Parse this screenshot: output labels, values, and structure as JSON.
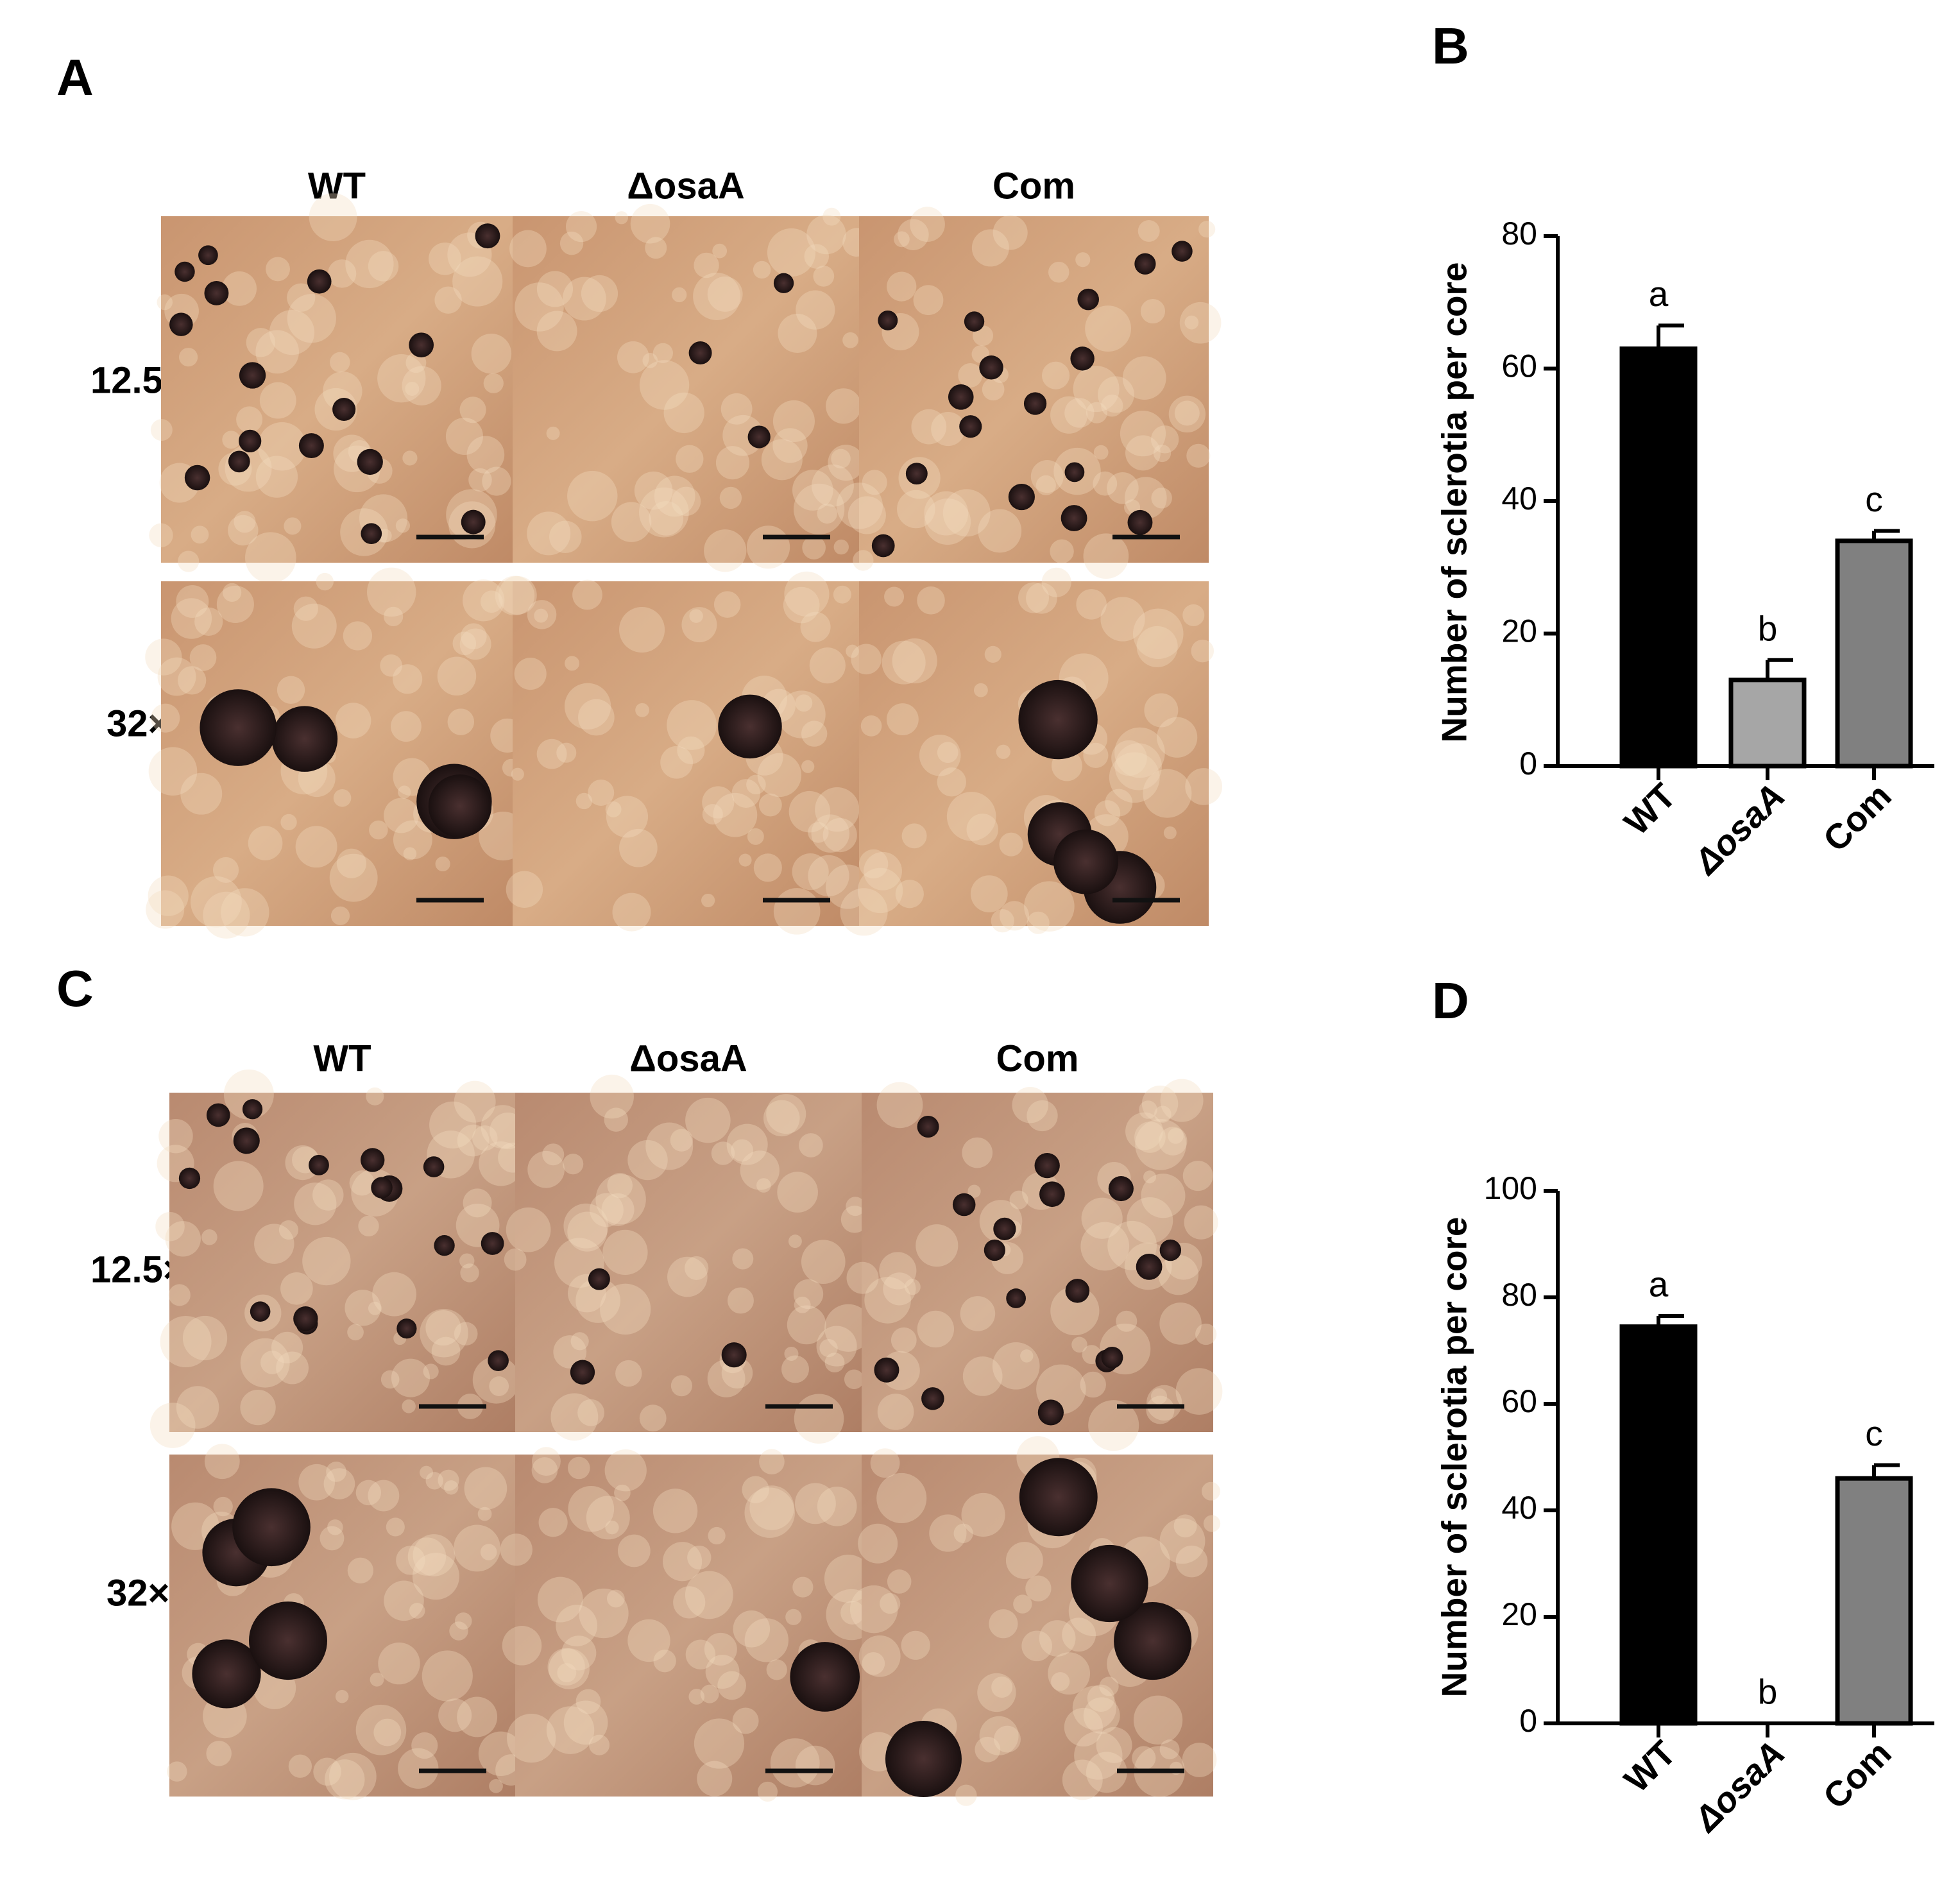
{
  "panel_a": {
    "label": "A",
    "columns": [
      "WT",
      "ΔosaA",
      "Com"
    ],
    "rows": [
      "12.5×",
      "32×"
    ]
  },
  "panel_c": {
    "label": "C",
    "columns": [
      "WT",
      "ΔosaA",
      "Com"
    ],
    "rows": [
      "12.5×",
      "32×"
    ]
  },
  "chart_data": [
    {
      "type": "bar",
      "panel": "B",
      "y_label": "Number of sclerotia per core",
      "categories": [
        "WT",
        "ΔosaA",
        "Com"
      ],
      "values": [
        63,
        13,
        34
      ],
      "errors": [
        3.5,
        3,
        1.5
      ],
      "annotations": [
        "a",
        "b",
        "c"
      ],
      "colors": [
        "#000000",
        "#a6a6a6",
        "#808080"
      ],
      "ylim": [
        0,
        80
      ],
      "yticks": [
        0,
        20,
        40,
        60,
        80
      ]
    },
    {
      "type": "bar",
      "panel": "D",
      "y_label": "Number of sclerotia per core",
      "categories": [
        "WT",
        "ΔosaA",
        "Com"
      ],
      "values": [
        74.5,
        0,
        46
      ],
      "errors": [
        2,
        0,
        2.5
      ],
      "annotations": [
        "a",
        "b",
        "c"
      ],
      "colors": [
        "#000000",
        "#a6a6a6",
        "#808080"
      ],
      "ylim": [
        0,
        100
      ],
      "yticks": [
        0,
        20,
        40,
        60,
        80,
        100
      ]
    }
  ]
}
